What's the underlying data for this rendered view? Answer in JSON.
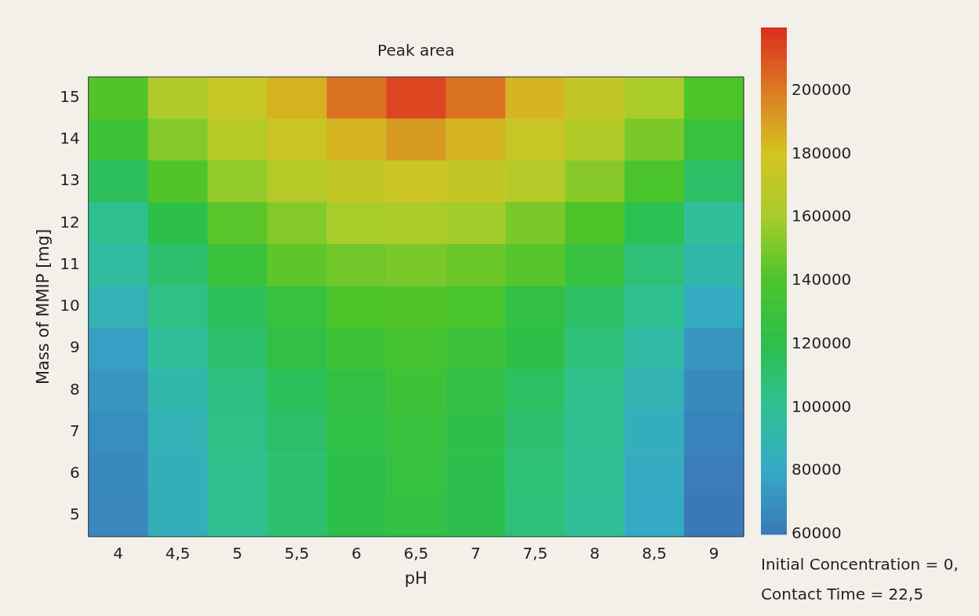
{
  "chart_data": {
    "type": "heatmap",
    "title": "Peak area",
    "xlabel": "pH",
    "ylabel": "Mass of MMIP [mg]",
    "categories": [
      "4",
      "4,5",
      "5",
      "5,5",
      "6",
      "6,5",
      "7",
      "7,5",
      "8",
      "8,5",
      "9"
    ],
    "y_categories": [
      "15",
      "14",
      "13",
      "12",
      "11",
      "10",
      "9",
      "8",
      "7",
      "6",
      "5"
    ],
    "cells": [
      [
        141000,
        163000,
        173000,
        185000,
        202000,
        213000,
        202000,
        184000,
        172000,
        161000,
        140000
      ],
      [
        131000,
        152000,
        166000,
        175000,
        184000,
        191000,
        184000,
        174000,
        164000,
        150000,
        128000
      ],
      [
        115000,
        141000,
        155000,
        166000,
        172000,
        176000,
        172000,
        165000,
        153000,
        138000,
        112000
      ],
      [
        101000,
        120000,
        143000,
        152000,
        160000,
        162000,
        159000,
        150000,
        140000,
        118000,
        98000
      ],
      [
        96000,
        111000,
        129000,
        144000,
        148000,
        150000,
        147000,
        142000,
        126000,
        108000,
        92000
      ],
      [
        87000,
        104000,
        116000,
        126000,
        140000,
        141000,
        139000,
        124000,
        113000,
        101000,
        82000
      ],
      [
        76000,
        98000,
        111000,
        123000,
        131000,
        136000,
        130000,
        121000,
        108000,
        94000,
        72000
      ],
      [
        72000,
        91000,
        105000,
        116000,
        124000,
        131000,
        123000,
        114000,
        102000,
        88000,
        67000
      ],
      [
        69000,
        87000,
        104000,
        112000,
        122000,
        128000,
        121000,
        110000,
        101000,
        84000,
        64000
      ],
      [
        67000,
        85000,
        102000,
        110000,
        120000,
        126000,
        119000,
        109000,
        100000,
        82000,
        62000
      ],
      [
        66000,
        85000,
        101000,
        110000,
        120000,
        125000,
        119000,
        108000,
        99000,
        81000,
        60000
      ]
    ],
    "clim": [
      60000,
      220000
    ],
    "cticks": [
      60000,
      80000,
      100000,
      120000,
      140000,
      160000,
      180000,
      200000
    ],
    "annotations": [
      "Initial Concentration = 0,",
      "Contact Time = 22,5"
    ]
  }
}
